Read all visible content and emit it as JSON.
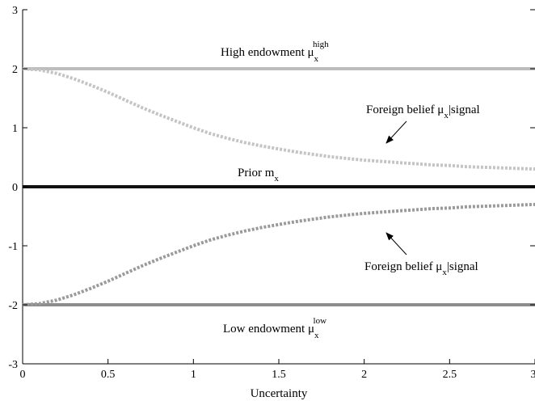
{
  "chart_data": {
    "type": "line",
    "title": "",
    "xlabel": "Uncertainty",
    "ylabel": "",
    "xlim": [
      0,
      3
    ],
    "ylim": [
      -3,
      3
    ],
    "xticks": [
      0,
      0.5,
      1,
      1.5,
      2,
      2.5,
      3
    ],
    "xtick_labels": [
      "0",
      "0.5",
      "1",
      "1.5",
      "2",
      "2.5",
      "3"
    ],
    "yticks": [
      -3,
      -2,
      -1,
      0,
      1,
      2,
      3
    ],
    "ytick_labels": [
      "-3",
      "-2",
      "-1",
      "0",
      "1",
      "2",
      "3"
    ],
    "grid": false,
    "series": [
      {
        "key": "high",
        "color": "#bdbdbd",
        "style": "solid",
        "x": [
          0,
          3
        ],
        "y": [
          2,
          2
        ]
      },
      {
        "key": "prior",
        "color": "#111111",
        "style": "solid",
        "x": [
          0,
          3
        ],
        "y": [
          0,
          0
        ]
      },
      {
        "key": "low",
        "color": "#8c8c8c",
        "style": "solid",
        "x": [
          0,
          3
        ],
        "y": [
          -2,
          -2
        ]
      },
      {
        "key": "belief_high",
        "color": "#c4c4c4",
        "style": "dotted",
        "x": [
          0,
          0.1,
          0.2,
          0.3,
          0.4,
          0.5,
          0.6,
          0.7,
          0.8,
          0.9,
          1.0,
          1.1,
          1.2,
          1.3,
          1.4,
          1.5,
          1.6,
          1.7,
          1.8,
          1.9,
          2.0,
          2.1,
          2.2,
          2.3,
          2.4,
          2.5,
          2.6,
          2.7,
          2.8,
          2.9,
          3.0
        ],
        "y": [
          2.0,
          1.98,
          1.92,
          1.83,
          1.72,
          1.6,
          1.47,
          1.34,
          1.22,
          1.11,
          1.0,
          0.9,
          0.82,
          0.75,
          0.69,
          0.64,
          0.59,
          0.55,
          0.51,
          0.48,
          0.45,
          0.43,
          0.41,
          0.39,
          0.37,
          0.36,
          0.34,
          0.33,
          0.32,
          0.31,
          0.3
        ]
      },
      {
        "key": "belief_low",
        "color": "#9a9a9a",
        "style": "dotted",
        "x": [
          0,
          0.1,
          0.2,
          0.3,
          0.4,
          0.5,
          0.6,
          0.7,
          0.8,
          0.9,
          1.0,
          1.1,
          1.2,
          1.3,
          1.4,
          1.5,
          1.6,
          1.7,
          1.8,
          1.9,
          2.0,
          2.1,
          2.2,
          2.3,
          2.4,
          2.5,
          2.6,
          2.7,
          2.8,
          2.9,
          3.0
        ],
        "y": [
          -2.0,
          -1.98,
          -1.92,
          -1.83,
          -1.72,
          -1.6,
          -1.47,
          -1.34,
          -1.22,
          -1.11,
          -1.0,
          -0.9,
          -0.82,
          -0.75,
          -0.69,
          -0.64,
          -0.59,
          -0.55,
          -0.51,
          -0.48,
          -0.45,
          -0.43,
          -0.41,
          -0.39,
          -0.37,
          -0.36,
          -0.34,
          -0.33,
          -0.32,
          -0.31,
          -0.3
        ]
      }
    ],
    "annotations": {
      "high": {
        "text": "High endowment μ",
        "sub": "x",
        "sup": "high"
      },
      "prior": {
        "text": "Prior m",
        "sub": "x"
      },
      "belief_upper": {
        "text": "Foreign belief μ",
        "sub": "x",
        "after": "|signal"
      },
      "belief_lower": {
        "text": "Foreign belief μ",
        "sub": "x",
        "after": "|signal"
      },
      "low": {
        "text": "Low endowment μ",
        "sub": "x",
        "sup": "low"
      }
    }
  }
}
